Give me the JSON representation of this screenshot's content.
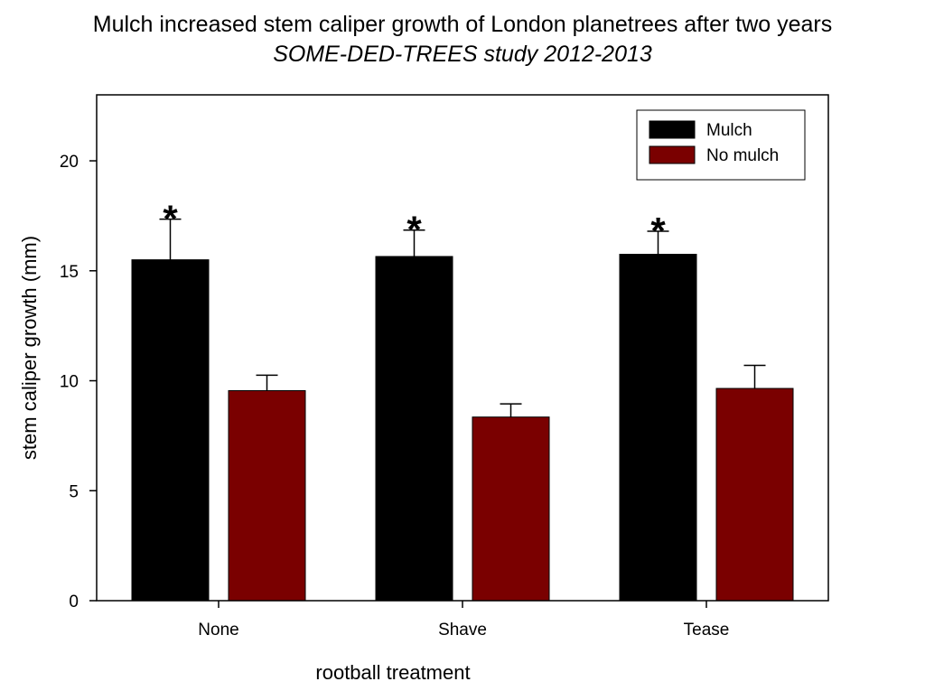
{
  "chart_data": {
    "type": "bar",
    "title": "Mulch increased stem caliper growth of London planetrees after two years",
    "subtitle": "SOME-DED-TREES study 2012-2013",
    "xlabel": "rootball treatment",
    "ylabel": "stem caliper growth (mm)",
    "ylim": [
      0,
      23
    ],
    "yticks": [
      0,
      5,
      10,
      15,
      20
    ],
    "categories": [
      "None",
      "Shave",
      "Tease"
    ],
    "series": [
      {
        "name": "Mulch",
        "color": "#000000",
        "values": [
          15.5,
          15.65,
          15.75
        ],
        "errors": [
          1.85,
          1.2,
          1.05
        ],
        "markers": [
          "*",
          "*",
          "*"
        ]
      },
      {
        "name": "No mulch",
        "color": "#7a0000",
        "values": [
          9.55,
          8.35,
          9.65
        ],
        "errors": [
          0.7,
          0.6,
          1.05
        ],
        "markers": [
          "",
          "",
          ""
        ]
      }
    ],
    "legend": "top-right",
    "grid": false
  }
}
